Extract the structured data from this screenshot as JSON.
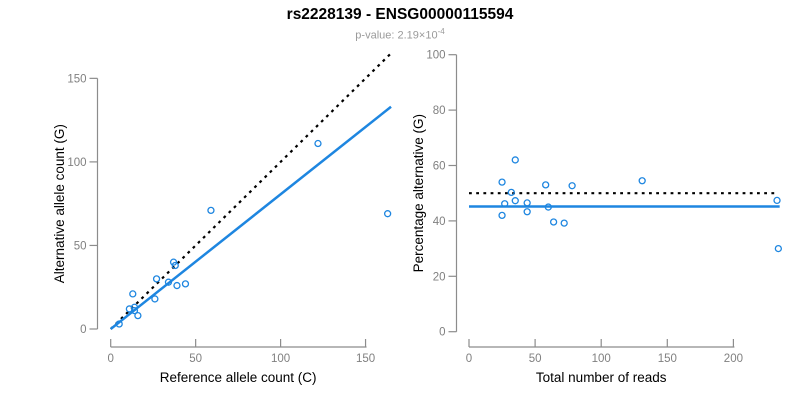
{
  "header": {
    "title": "rs2228139 - ENSG00000115594",
    "subtitle_prefix": "p-value: 2.19×10",
    "subtitle_exponent": "-4"
  },
  "colors": {
    "accent_blue": "#1E86E0",
    "reference_black": "#000000",
    "axis_line": "#8C8C8C",
    "tick_label": "#808080",
    "axis_title": "#000000",
    "subtitle_gray": "#9a9a9a"
  },
  "chart_data": [
    {
      "type": "scatter",
      "panel": "left",
      "xlabel": "Reference allele count (C)",
      "ylabel": "Alternative allele count (G)",
      "xlim": [
        0,
        165
      ],
      "ylim": [
        0,
        165
      ],
      "xticks": [
        0,
        50,
        100,
        150
      ],
      "yticks": [
        0,
        50,
        100,
        150
      ],
      "grid": false,
      "legend": "none",
      "points": [
        [
          5,
          3
        ],
        [
          11,
          12
        ],
        [
          14,
          13
        ],
        [
          14,
          11
        ],
        [
          16,
          8
        ],
        [
          13,
          21
        ],
        [
          26,
          18
        ],
        [
          27,
          30
        ],
        [
          34,
          28
        ],
        [
          37,
          40
        ],
        [
          38,
          38
        ],
        [
          39,
          26
        ],
        [
          44,
          27
        ],
        [
          59,
          71
        ],
        [
          122,
          111
        ],
        [
          163,
          69
        ]
      ],
      "lines": [
        {
          "name": "identity-dashed-line",
          "style": "dotted",
          "color": "#000000",
          "x": [
            0,
            165
          ],
          "y": [
            0,
            165
          ]
        },
        {
          "name": "fit-line",
          "style": "solid",
          "color": "#1E86E0",
          "x": [
            0,
            165
          ],
          "y": [
            0,
            133
          ]
        }
      ]
    },
    {
      "type": "scatter",
      "panel": "right",
      "xlabel": "Total number of reads",
      "ylabel": "Percentage alternative (G)",
      "xlim": [
        0,
        240
      ],
      "ylim": [
        0,
        100
      ],
      "xticks": [
        0,
        50,
        100,
        150,
        200
      ],
      "yticks": [
        0,
        20,
        40,
        60,
        80,
        100
      ],
      "grid": false,
      "legend": "none",
      "points": [
        [
          25,
          42
        ],
        [
          25,
          54
        ],
        [
          27,
          46.2
        ],
        [
          32,
          50.3
        ],
        [
          35,
          62
        ],
        [
          35,
          47.3
        ],
        [
          44,
          46.5
        ],
        [
          44,
          43.3
        ],
        [
          58,
          53
        ],
        [
          60,
          45
        ],
        [
          64,
          39.6
        ],
        [
          72,
          39.2
        ],
        [
          78,
          52.7
        ],
        [
          131,
          54.5
        ],
        [
          233,
          47.4
        ],
        [
          234,
          30
        ]
      ],
      "lines": [
        {
          "name": "fifty-percent-dashed-line",
          "style": "dotted",
          "color": "#000000",
          "x": [
            0,
            233
          ],
          "y": [
            50,
            50
          ]
        },
        {
          "name": "mean-percentage-line",
          "style": "solid",
          "color": "#1E86E0",
          "x": [
            0,
            235
          ],
          "y": [
            45.2,
            45.2
          ]
        }
      ]
    }
  ]
}
